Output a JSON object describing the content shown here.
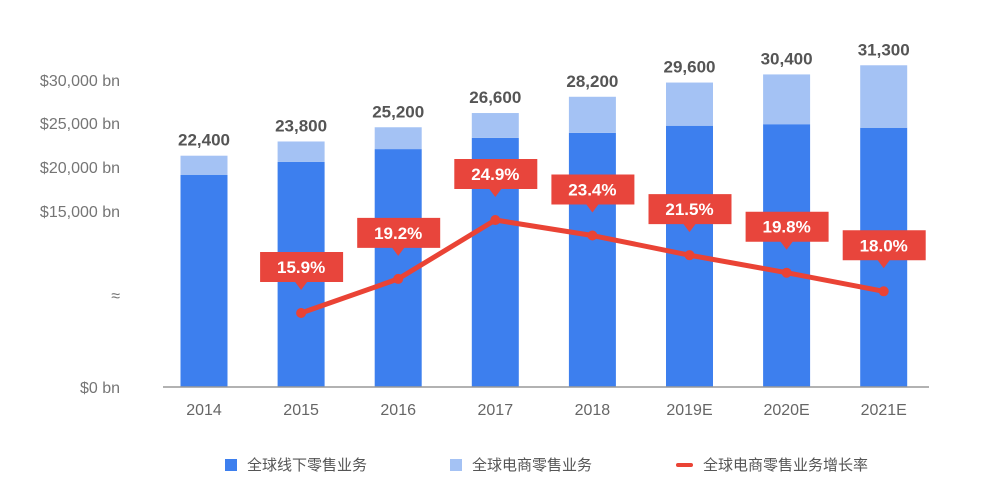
{
  "chart_data": {
    "type": "bar",
    "stacked": true,
    "broken_y_axis": true,
    "categories": [
      "2014",
      "2015",
      "2016",
      "2017",
      "2018",
      "2019E",
      "2020E",
      "2021E"
    ],
    "series": [
      {
        "name": "全球线下零售业务",
        "type": "bar",
        "color": "#3D7FEE",
        "values": [
          20500,
          21800,
          23050,
          24150,
          24650,
          25350,
          25500,
          25150
        ]
      },
      {
        "name": "全球电商零售业务",
        "type": "bar",
        "color": "#A4C2F4",
        "values": [
          1900,
          2000,
          2150,
          2450,
          3550,
          4250,
          4900,
          6150
        ]
      },
      {
        "name": "全球电商零售业务增长率",
        "type": "line",
        "color": "#EA4335",
        "values": [
          null,
          15.9,
          19.2,
          24.9,
          23.4,
          21.5,
          19.8,
          18.0
        ],
        "labels": [
          "",
          "15.9%",
          "19.2%",
          "24.9%",
          "23.4%",
          "21.5%",
          "19.8%",
          "18.0%"
        ]
      }
    ],
    "totals": [
      "22,400",
      "23,800",
      "25,200",
      "26,600",
      "28,200",
      "29,600",
      "30,400",
      "31,300"
    ],
    "y_ticks": [
      "$30,000 bn",
      "$25,000 bn",
      "$20,000 bn",
      "$15,000 bn",
      "≈",
      "$0 bn"
    ],
    "legend_position": "bottom",
    "grid": false
  }
}
